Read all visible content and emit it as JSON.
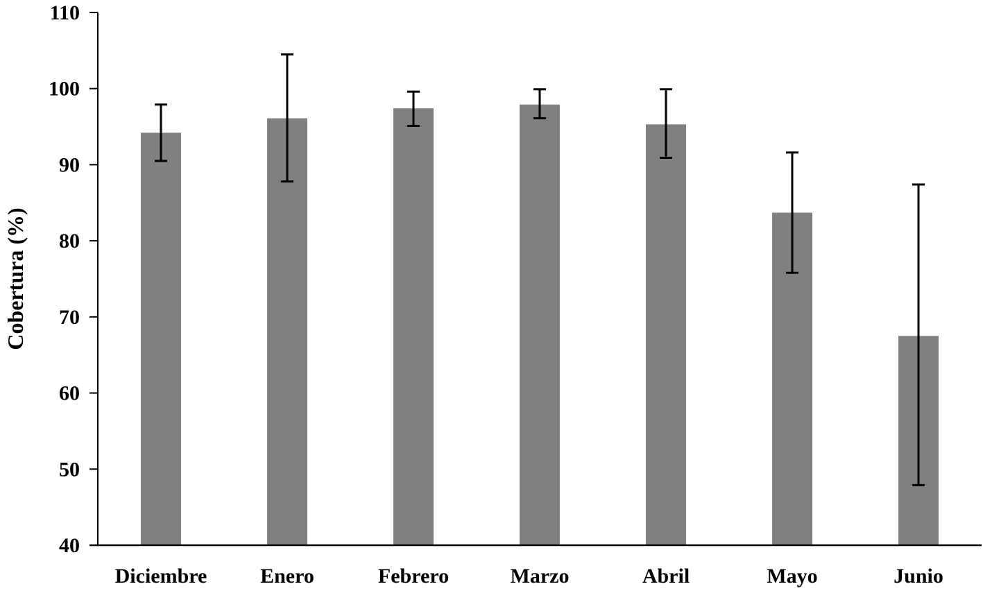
{
  "chart_data": {
    "type": "bar",
    "title": "",
    "xlabel": "",
    "ylabel": "Cobertura (%)",
    "ylim": [
      40,
      110
    ],
    "yticks": [
      40,
      50,
      60,
      70,
      80,
      90,
      100,
      110
    ],
    "grid": false,
    "categories": [
      "Diciembre",
      "Enero",
      "Febrero",
      "Marzo",
      "Abril",
      "Mayo",
      "Junio"
    ],
    "series": [
      {
        "values": [
          94.2,
          96.1,
          97.4,
          97.9,
          95.3,
          83.7,
          67.5
        ],
        "error_low": [
          90.5,
          87.8,
          95.1,
          96.1,
          90.9,
          75.8,
          47.9
        ],
        "error_high": [
          97.9,
          104.5,
          99.6,
          99.9,
          99.9,
          91.6,
          87.4
        ]
      }
    ],
    "colors": {
      "bar": "#808080",
      "axis": "#000000",
      "error_bar": "#000000"
    }
  }
}
